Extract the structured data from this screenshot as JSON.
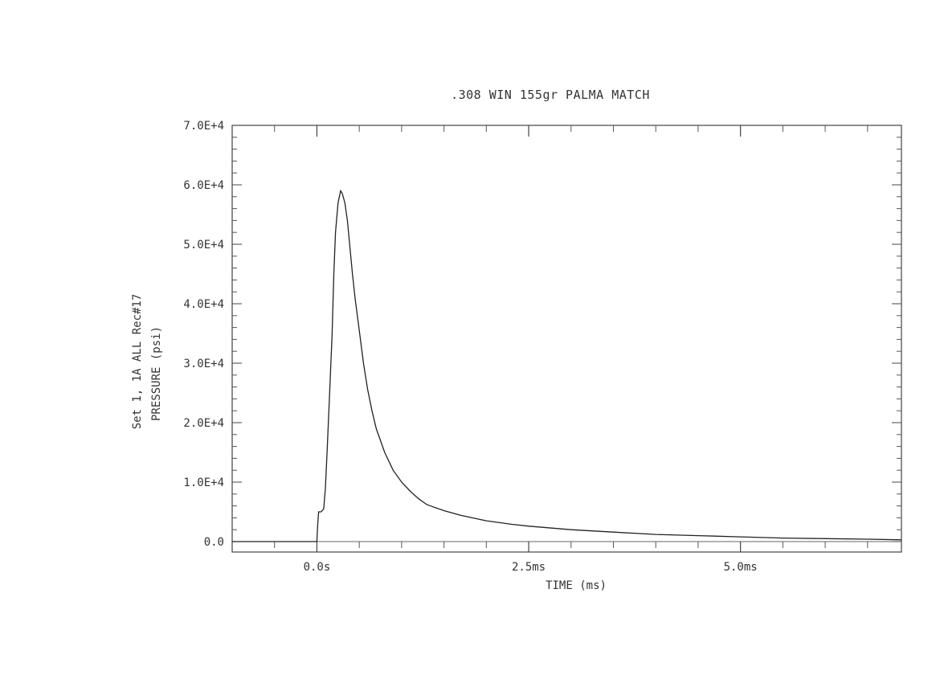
{
  "chart_data": {
    "type": "line",
    "title": ".308 WIN 155gr PALMA MATCH",
    "xlabel": "TIME (ms)",
    "ylabel": "PRESSURE (psi)",
    "ylabel_secondary": "Set 1, 1A   ALL  Rec#17",
    "xlim": [
      -1.0,
      6.9
    ],
    "ylim": [
      0,
      70000
    ],
    "x_tick_values": [
      0,
      2.5,
      5.0
    ],
    "x_tick_labels": [
      "0.0s",
      "2.5ms",
      "5.0ms"
    ],
    "y_tick_values": [
      0,
      10000,
      20000,
      30000,
      40000,
      50000,
      60000,
      70000
    ],
    "y_tick_labels": [
      "0.0",
      "1.0E+4",
      "2.0E+4",
      "3.0E+4",
      "4.0E+4",
      "5.0E+4",
      "6.0E+4",
      "7.0E+4"
    ],
    "grid": false,
    "series": [
      {
        "x": [
          -1.0,
          0.0,
          0.01,
          0.02,
          0.05,
          0.08,
          0.1,
          0.12,
          0.15,
          0.18,
          0.2,
          0.22,
          0.25,
          0.28,
          0.3,
          0.33,
          0.36,
          0.38,
          0.4,
          0.42,
          0.45,
          0.5,
          0.55,
          0.6,
          0.65,
          0.7,
          0.8,
          0.9,
          1.0,
          1.1,
          1.2,
          1.3,
          1.5,
          1.7,
          2.0,
          2.3,
          2.5,
          3.0,
          3.5,
          4.0,
          4.5,
          5.0,
          5.5,
          6.0,
          6.5,
          6.9
        ],
        "y": [
          0,
          0,
          3000,
          5000,
          5000,
          5500,
          9000,
          15000,
          25000,
          35000,
          45000,
          52000,
          57000,
          59000,
          58500,
          57000,
          54000,
          51000,
          48000,
          45000,
          41000,
          35500,
          30000,
          25500,
          22000,
          19000,
          15000,
          12000,
          10000,
          8500,
          7200,
          6200,
          5200,
          4400,
          3500,
          2900,
          2600,
          2000,
          1600,
          1200,
          1000,
          800,
          600,
          500,
          400,
          300
        ]
      }
    ]
  }
}
